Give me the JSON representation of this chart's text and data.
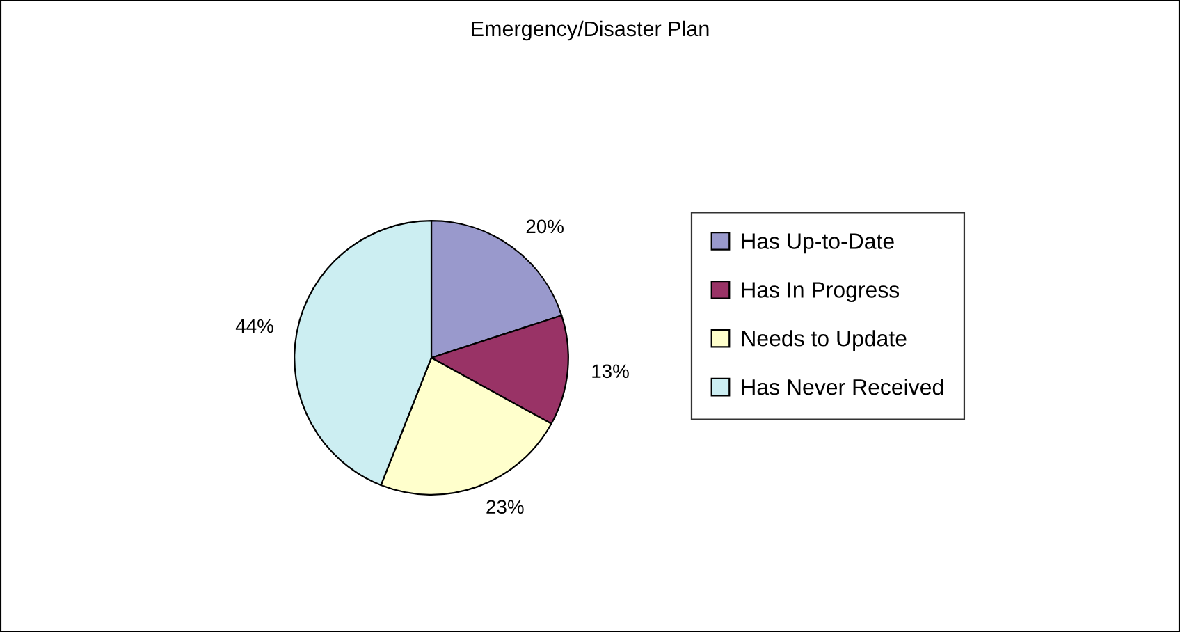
{
  "chart_data": {
    "type": "pie",
    "title": "Emergency/Disaster Plan",
    "categories": [
      "Has Up-to-Date",
      "Has In Progress",
      "Needs to Update",
      "Has Never Received"
    ],
    "values": [
      20,
      13,
      23,
      44
    ],
    "colors": [
      "#9999cc",
      "#993366",
      "#ffffcc",
      "#cceef2"
    ],
    "value_labels": [
      "20%",
      "13%",
      "23%",
      "44%"
    ],
    "legend": "right"
  }
}
